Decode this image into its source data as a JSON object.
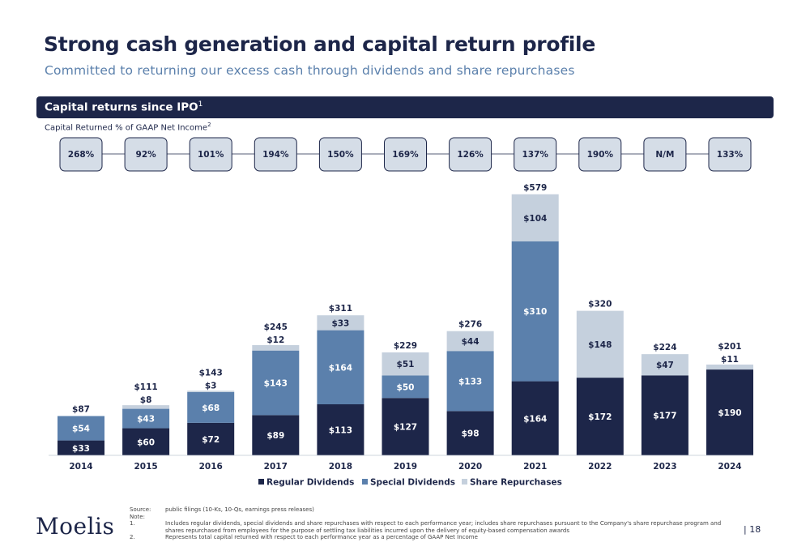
{
  "header": {
    "title": "Strong cash generation and capital return profile",
    "subtitle": "Committed to returning our excess cash through dividends and share repurchases"
  },
  "section": {
    "label": "Capital returns since IPO",
    "footnote_ref": "1"
  },
  "pct_caption": {
    "label": "Capital Returned % of GAAP Net Income",
    "footnote_ref": "2"
  },
  "chart_data": {
    "type": "bar",
    "stacked": true,
    "categories": [
      "2014",
      "2015",
      "2016",
      "2017",
      "2018",
      "2019",
      "2020",
      "2021",
      "2022",
      "2023",
      "2024"
    ],
    "series": [
      {
        "name": "Regular Dividends",
        "color": "#1d2649",
        "values": [
          33,
          60,
          72,
          89,
          113,
          127,
          98,
          164,
          172,
          177,
          190
        ]
      },
      {
        "name": "Special Dividends",
        "color": "#5b80ac",
        "values": [
          54,
          43,
          68,
          143,
          164,
          50,
          133,
          310,
          0,
          0,
          0
        ]
      },
      {
        "name": "Share Repurchases",
        "color": "#c5d0dd",
        "values": [
          0,
          8,
          3,
          12,
          33,
          51,
          44,
          104,
          148,
          47,
          11
        ]
      }
    ],
    "totals": [
      "$87",
      "$111",
      "$143",
      "$245",
      "$311",
      "$229",
      "$276",
      "$579",
      "$320",
      "$224",
      "$201"
    ],
    "pct_of_net_income": [
      "268%",
      "92%",
      "101%",
      "194%",
      "150%",
      "169%",
      "126%",
      "137%",
      "190%",
      "N/M",
      "133%"
    ],
    "value_prefix": "$",
    "legend_position": "bottom",
    "grid": false
  },
  "footer": {
    "notes": [
      {
        "key": "Source:",
        "text": "public filings (10-Ks, 10-Qs, earnings press releases)"
      },
      {
        "key": "Note:",
        "text": ""
      },
      {
        "key": "1.",
        "text": "Includes regular dividends, special dividends and share repurchases with respect to each performance year; includes share repurchases pursuant to the Company's share repurchase program and shares repurchased from employees for the purpose of settling tax liabilities incurred upon the delivery of equity-based compensation awards"
      },
      {
        "key": "2.",
        "text": "Represents total capital returned with respect to each performance year as a percentage of GAAP Net Income"
      }
    ],
    "logo": "Moelis",
    "page": "|  18"
  }
}
